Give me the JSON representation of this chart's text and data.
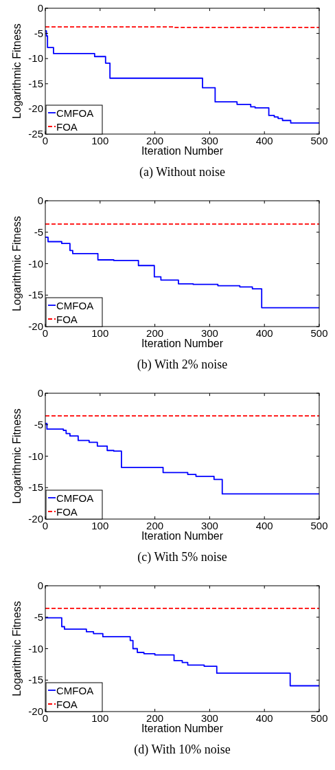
{
  "chart_data": [
    {
      "type": "step",
      "title": "(a) Without noise",
      "xlabel": "Iteration Number",
      "ylabel": "Logarithmic Fitness",
      "xlim": [
        0,
        500
      ],
      "xticks": [
        0,
        100,
        200,
        300,
        400,
        500
      ],
      "ylim": [
        -25,
        0
      ],
      "yticks": [
        -25,
        -20,
        -15,
        -10,
        -5,
        0
      ],
      "legend": "bottom left",
      "grid": false,
      "series": [
        {
          "name": "CMFOA",
          "color": "#0000ff",
          "line_style": "solid",
          "x": [
            0,
            2,
            4,
            15,
            90,
            110,
            118,
            287,
            310,
            350,
            375,
            383,
            408,
            418,
            425,
            433,
            448,
            500
          ],
          "values": [
            -4.5,
            -5.5,
            -7.8,
            -9.0,
            -9.6,
            -10.9,
            -13.9,
            -15.8,
            -18.6,
            -19.1,
            -19.6,
            -19.8,
            -21.3,
            -21.6,
            -21.9,
            -22.3,
            -22.8,
            -22.8
          ]
        },
        {
          "name": "FOA",
          "color": "#ff0000",
          "line_style": "dashed",
          "x": [
            0,
            235,
            500
          ],
          "values": [
            -3.7,
            -3.8,
            -3.8
          ]
        }
      ]
    },
    {
      "type": "step",
      "title": "(b) With 2% noise",
      "xlabel": "Iteration Number",
      "ylabel": "Logarithmic Fitness",
      "xlim": [
        0,
        500
      ],
      "xticks": [
        0,
        100,
        200,
        300,
        400,
        500
      ],
      "ylim": [
        -20,
        0
      ],
      "yticks": [
        -20,
        -15,
        -10,
        -5,
        0
      ],
      "legend": "bottom left",
      "grid": false,
      "series": [
        {
          "name": "CMFOA",
          "color": "#0000ff",
          "line_style": "solid",
          "x": [
            0,
            5,
            30,
            45,
            50,
            96,
            125,
            170,
            199,
            211,
            243,
            270,
            315,
            355,
            378,
            395,
            500
          ],
          "values": [
            -5.8,
            -6.5,
            -6.8,
            -7.9,
            -8.4,
            -9.4,
            -9.5,
            -10.3,
            -12.1,
            -12.6,
            -13.2,
            -13.3,
            -13.5,
            -13.7,
            -14.0,
            -17.0,
            -17.0
          ]
        },
        {
          "name": "FOA",
          "color": "#ff0000",
          "line_style": "dashed",
          "x": [
            0,
            500
          ],
          "values": [
            -3.7,
            -3.7
          ]
        }
      ]
    },
    {
      "type": "step",
      "title": "(c) With 5% noise",
      "xlabel": "Iteration Number",
      "ylabel": "Logarithmic Fitness",
      "xlim": [
        0,
        500
      ],
      "xticks": [
        0,
        100,
        200,
        300,
        400,
        500
      ],
      "ylim": [
        -20,
        0
      ],
      "yticks": [
        -20,
        -15,
        -10,
        -5,
        0
      ],
      "legend": "bottom left",
      "grid": false,
      "series": [
        {
          "name": "CMFOA",
          "color": "#0000ff",
          "line_style": "solid",
          "x": [
            0,
            3,
            33,
            38,
            45,
            60,
            80,
            95,
            113,
            125,
            139,
            215,
            260,
            275,
            308,
            323,
            500
          ],
          "values": [
            -4.8,
            -5.7,
            -5.9,
            -6.4,
            -6.8,
            -7.5,
            -7.8,
            -8.4,
            -9.1,
            -9.2,
            -11.8,
            -12.6,
            -12.9,
            -13.2,
            -13.7,
            -16.0,
            -16.0
          ]
        },
        {
          "name": "FOA",
          "color": "#ff0000",
          "line_style": "dashed",
          "x": [
            0,
            500
          ],
          "values": [
            -3.6,
            -3.6
          ]
        }
      ]
    },
    {
      "type": "step",
      "title": "(d) With 10% noise",
      "xlabel": "Iteration Number",
      "ylabel": "Logarithmic Fitness",
      "xlim": [
        0,
        500
      ],
      "xticks": [
        0,
        100,
        200,
        300,
        400,
        500
      ],
      "ylim": [
        -20,
        0
      ],
      "yticks": [
        -20,
        -15,
        -10,
        -5,
        0
      ],
      "legend": "bottom left",
      "grid": false,
      "series": [
        {
          "name": "CMFOA",
          "color": "#0000ff",
          "line_style": "solid",
          "x": [
            0,
            30,
            35,
            75,
            88,
            105,
            155,
            160,
            168,
            180,
            200,
            235,
            250,
            260,
            290,
            313,
            447,
            500
          ],
          "values": [
            -5.1,
            -6.5,
            -6.9,
            -7.3,
            -7.6,
            -8.1,
            -8.7,
            -10.0,
            -10.6,
            -10.8,
            -11.0,
            -11.9,
            -12.2,
            -12.6,
            -12.8,
            -13.9,
            -15.9,
            -15.9
          ]
        },
        {
          "name": "FOA",
          "color": "#ff0000",
          "line_style": "dashed",
          "x": [
            0,
            500
          ],
          "values": [
            -3.6,
            -3.6
          ]
        }
      ]
    }
  ]
}
